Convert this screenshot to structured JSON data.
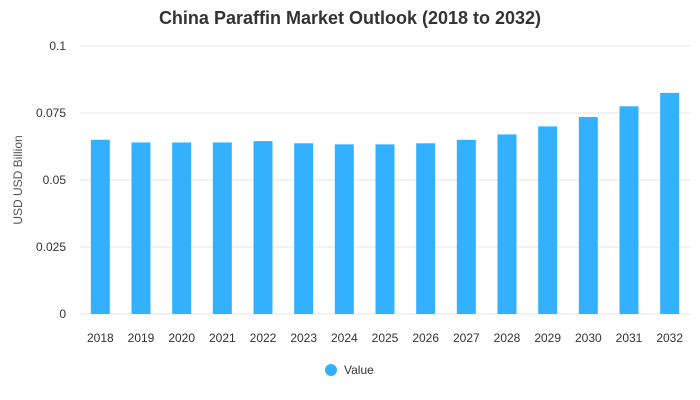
{
  "chart_data": {
    "type": "bar",
    "title": "China Paraffin Market Outlook (2018 to 2032)",
    "xlabel": "",
    "ylabel": "USD USD Billion",
    "ylim": [
      0,
      0.1
    ],
    "yticks": [
      "0",
      "0.025",
      "0.05",
      "0.075",
      "0.1"
    ],
    "ytick_values": [
      0,
      0.025,
      0.05,
      0.075,
      0.1
    ],
    "categories": [
      "2018",
      "2019",
      "2020",
      "2021",
      "2022",
      "2023",
      "2024",
      "2025",
      "2026",
      "2027",
      "2028",
      "2029",
      "2030",
      "2031",
      "2032"
    ],
    "series": [
      {
        "name": "Value",
        "color": "#33b1ff",
        "values": [
          0.065,
          0.064,
          0.064,
          0.064,
          0.0645,
          0.0637,
          0.0633,
          0.0633,
          0.0637,
          0.065,
          0.067,
          0.07,
          0.0735,
          0.0775,
          0.0825
        ]
      }
    ],
    "grid": true,
    "legend": "bottom-center"
  }
}
